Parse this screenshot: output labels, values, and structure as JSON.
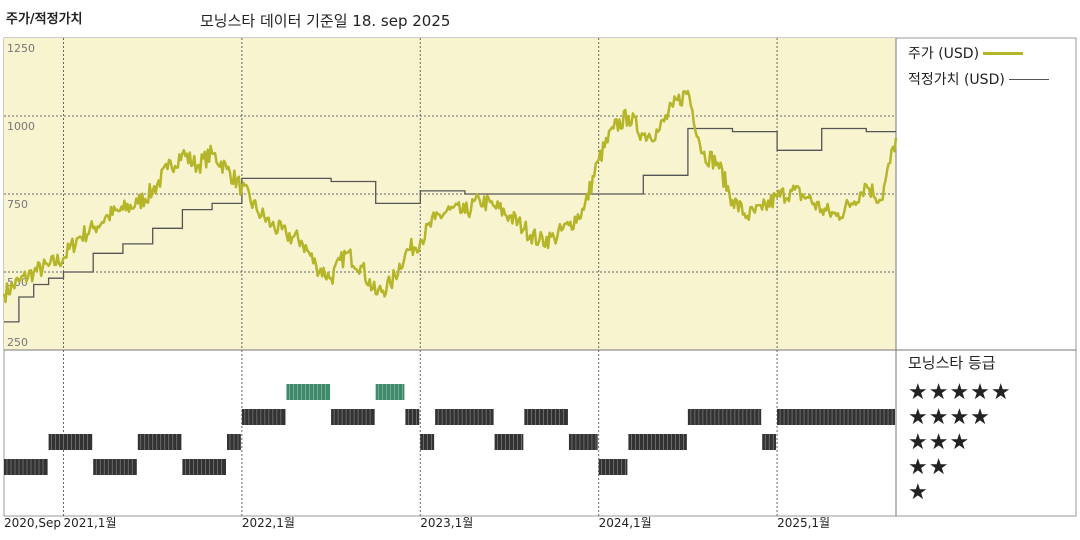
{
  "header": {
    "panel_label": "주가/적정가치",
    "title": "모닝스타 데이터 기준일 18. sep 2025"
  },
  "legend": {
    "price_label": "주가 (USD)",
    "fair_label": "적정가치 (USD)"
  },
  "rating": {
    "title": "모닝스타 등급",
    "stars": [
      "★★★★★",
      "★★★★",
      "★★★",
      "★★",
      "★"
    ]
  },
  "colors": {
    "price": "#b5b52a",
    "fair": "#555555",
    "bg": "#f8f4d0",
    "rating_bar": "#333333",
    "rating_bar_5": "#3e8a6a"
  },
  "chart_data": [
    {
      "type": "line",
      "title": "",
      "xlabel": "",
      "ylabel": "",
      "x_range": [
        "2020-09",
        "2025-09"
      ],
      "ylim": [
        250,
        1250
      ],
      "y_ticks": [
        250,
        500,
        750,
        1000,
        1250
      ],
      "x_tick_labels": [
        "2020,Sep",
        "2021,1월",
        "2022,1월",
        "2023,1월",
        "2024,1월",
        "2025,1월"
      ],
      "grid": true,
      "series": [
        {
          "name": "주가 (USD)",
          "x": [
            "2020-09",
            "2020-10",
            "2020-11",
            "2020-12",
            "2021-01",
            "2021-02",
            "2021-03",
            "2021-04",
            "2021-05",
            "2021-06",
            "2021-07",
            "2021-08",
            "2021-09",
            "2021-10",
            "2021-11",
            "2021-12",
            "2022-01",
            "2022-02",
            "2022-03",
            "2022-04",
            "2022-05",
            "2022-06",
            "2022-07",
            "2022-08",
            "2022-09",
            "2022-10",
            "2022-11",
            "2022-12",
            "2023-01",
            "2023-02",
            "2023-03",
            "2023-04",
            "2023-05",
            "2023-06",
            "2023-07",
            "2023-08",
            "2023-09",
            "2023-10",
            "2023-11",
            "2023-12",
            "2024-01",
            "2024-02",
            "2024-03",
            "2024-04",
            "2024-05",
            "2024-06",
            "2024-07",
            "2024-08",
            "2024-09",
            "2024-10",
            "2024-11",
            "2024-12",
            "2025-01",
            "2025-02",
            "2025-03",
            "2025-04",
            "2025-05",
            "2025-06",
            "2025-07",
            "2025-08",
            "2025-09"
          ],
          "values": [
            430,
            470,
            500,
            520,
            545,
            610,
            640,
            680,
            700,
            720,
            760,
            830,
            880,
            840,
            880,
            830,
            770,
            700,
            650,
            620,
            600,
            520,
            480,
            560,
            520,
            430,
            460,
            560,
            600,
            670,
            700,
            690,
            730,
            710,
            680,
            640,
            600,
            610,
            650,
            700,
            860,
            960,
            1000,
            940,
            950,
            1030,
            1080,
            880,
            850,
            730,
            680,
            700,
            740,
            760,
            740,
            700,
            680,
            720,
            780,
            730,
            930
          ]
        },
        {
          "name": "적정가치 (USD)",
          "x": [
            "2020-09",
            "2020-10",
            "2020-11",
            "2020-12",
            "2021-01",
            "2021-03",
            "2021-05",
            "2021-07",
            "2021-09",
            "2021-11",
            "2022-01",
            "2022-04",
            "2022-07",
            "2022-10",
            "2023-01",
            "2023-04",
            "2023-07",
            "2023-10",
            "2024-01",
            "2024-04",
            "2024-07",
            "2024-10",
            "2025-01",
            "2025-04",
            "2025-07",
            "2025-09"
          ],
          "values": [
            340,
            420,
            460,
            480,
            500,
            560,
            590,
            640,
            700,
            720,
            800,
            800,
            790,
            720,
            760,
            750,
            750,
            750,
            750,
            810,
            960,
            950,
            890,
            960,
            950,
            950
          ]
        }
      ]
    },
    {
      "type": "table",
      "title": "모닝스타 등급",
      "levels": [
        5,
        4,
        3,
        2,
        1
      ],
      "periods": [
        {
          "from": "2020-09",
          "to": "2020-12",
          "stars": 2
        },
        {
          "from": "2020-12",
          "to": "2021-03",
          "stars": 3
        },
        {
          "from": "2021-03",
          "to": "2021-06",
          "stars": 2
        },
        {
          "from": "2021-06",
          "to": "2021-09",
          "stars": 3
        },
        {
          "from": "2021-09",
          "to": "2021-12",
          "stars": 2
        },
        {
          "from": "2021-12",
          "to": "2022-01",
          "stars": 3
        },
        {
          "from": "2022-01",
          "to": "2022-04",
          "stars": 4
        },
        {
          "from": "2022-04",
          "to": "2022-07",
          "stars": 5
        },
        {
          "from": "2022-07",
          "to": "2022-10",
          "stars": 4
        },
        {
          "from": "2022-10",
          "to": "2022-12",
          "stars": 5
        },
        {
          "from": "2022-12",
          "to": "2023-01",
          "stars": 4
        },
        {
          "from": "2023-01",
          "to": "2023-02",
          "stars": 3
        },
        {
          "from": "2023-02",
          "to": "2023-06",
          "stars": 4
        },
        {
          "from": "2023-06",
          "to": "2023-08",
          "stars": 3
        },
        {
          "from": "2023-08",
          "to": "2023-11",
          "stars": 4
        },
        {
          "from": "2023-11",
          "to": "2024-01",
          "stars": 3
        },
        {
          "from": "2024-01",
          "to": "2024-03",
          "stars": 2
        },
        {
          "from": "2024-03",
          "to": "2024-07",
          "stars": 3
        },
        {
          "from": "2024-07",
          "to": "2024-12",
          "stars": 4
        },
        {
          "from": "2024-12",
          "to": "2025-01",
          "stars": 3
        },
        {
          "from": "2025-01",
          "to": "2025-09",
          "stars": 4
        }
      ]
    }
  ]
}
